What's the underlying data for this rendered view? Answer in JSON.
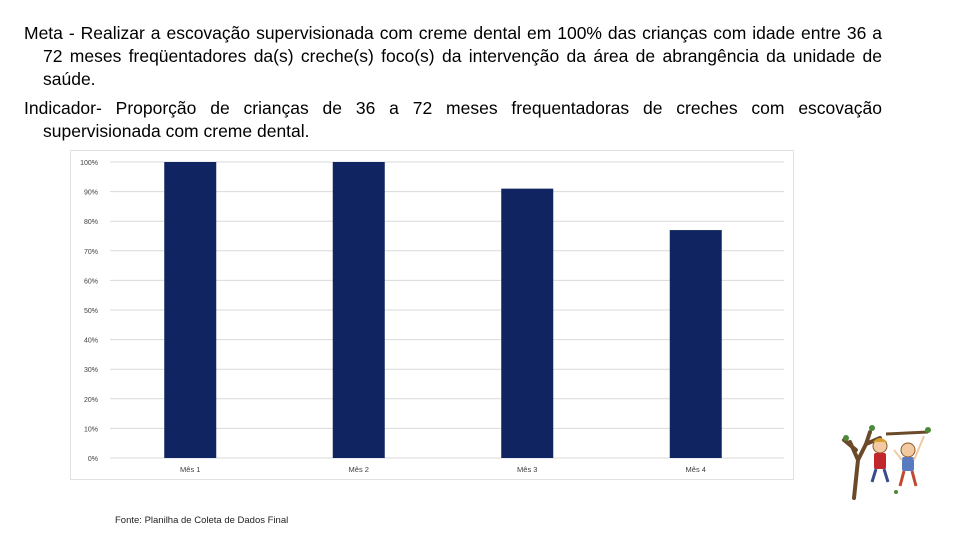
{
  "text": {
    "meta": "Meta - Realizar a escovação supervisionada com creme dental em 100% das crianças com idade entre 36 a 72 meses freqüentadores da(s) creche(s) foco(s) da intervenção da área de abrangência da unidade de saúde.",
    "indicador": "Indicador- Proporção de crianças de 36 a 72 meses frequentadoras de creches com escovação supervisionada com creme dental.",
    "fonte": "Fonte: Planilha de Coleta de Dados Final"
  },
  "chart_data": {
    "type": "bar",
    "categories": [
      "Mês 1",
      "Mês 2",
      "Mês 3",
      "Mês 4"
    ],
    "values": [
      100,
      100,
      91,
      77
    ],
    "ylim": [
      0,
      100
    ],
    "yticks": [
      "0%",
      "10%",
      "20%",
      "30%",
      "40%",
      "50%",
      "60%",
      "70%",
      "80%",
      "90%",
      "100%"
    ],
    "grid": true,
    "bar_color": "#0f2460",
    "title": "",
    "xlabel": "",
    "ylabel": ""
  },
  "colors": {
    "bar": "#0f2460",
    "grid": "#d9d9d9",
    "tick_text": "#404040"
  },
  "decoration": {
    "icon": "kids-playing-on-tree-illustration"
  }
}
